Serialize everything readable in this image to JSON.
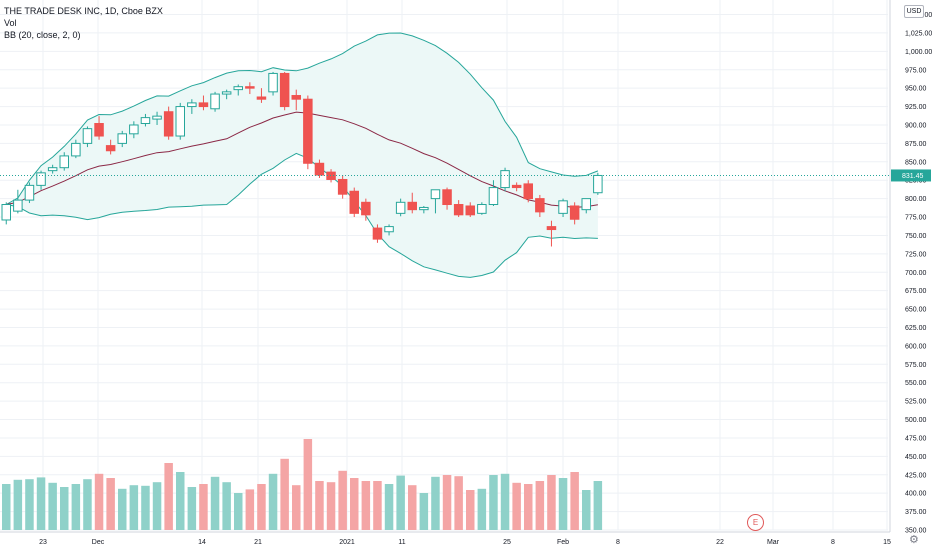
{
  "header": {
    "title": "THE TRADE DESK INC, 1D, Cboe BZX",
    "volume_label": "Vol",
    "bb_label": "BB (20, close, 2, 0)"
  },
  "currency_badge": "USD",
  "settings_icon": "gear-icon",
  "earnings_marker": "E",
  "colors": {
    "up": "#26a69a",
    "down": "#ef5350",
    "up_volume": "#8fd1c9",
    "down_volume": "#f4a5a5",
    "band": "#26a69a",
    "band_fill": "#ecf8f7",
    "basis": "#8b2846",
    "grid": "#eef1f5",
    "last_price_bg": "#26a69a"
  },
  "chart_data": {
    "type": "candlestick",
    "symbol": "THE TRADE DESK INC",
    "interval": "1D",
    "exchange": "Cboe BZX",
    "price_axis": {
      "ticks": [
        "1,050.00",
        "1,025.00",
        "1,000.00",
        "975.00",
        "950.00",
        "925.00",
        "900.00",
        "875.00",
        "850.00",
        "825.00",
        "800.00",
        "775.00",
        "750.00",
        "725.00",
        "700.00",
        "675.00",
        "650.00",
        "625.00",
        "600.00",
        "575.00",
        "550.00",
        "525.00",
        "500.00",
        "475.00",
        "450.00",
        "425.00",
        "400.00",
        "375.00",
        "350.00"
      ],
      "range": [
        350,
        1062
      ]
    },
    "x_ticks": [
      "23",
      "Dec",
      "14",
      "21",
      "2021",
      "11",
      "25",
      "Feb",
      "8",
      "22",
      "Mar",
      "8",
      "15"
    ],
    "last_price": 831.45,
    "last_price_label": "831.45",
    "candles": [
      {
        "o": 771,
        "h": 795,
        "l": 765,
        "c": 792
      },
      {
        "o": 783,
        "h": 812,
        "l": 780,
        "c": 798
      },
      {
        "o": 798,
        "h": 822,
        "l": 794,
        "c": 818
      },
      {
        "o": 818,
        "h": 838,
        "l": 812,
        "c": 835
      },
      {
        "o": 838,
        "h": 846,
        "l": 834,
        "c": 842
      },
      {
        "o": 842,
        "h": 863,
        "l": 838,
        "c": 858
      },
      {
        "o": 858,
        "h": 880,
        "l": 855,
        "c": 875
      },
      {
        "o": 875,
        "h": 898,
        "l": 870,
        "c": 895
      },
      {
        "o": 902,
        "h": 912,
        "l": 880,
        "c": 885
      },
      {
        "o": 872,
        "h": 880,
        "l": 860,
        "c": 865
      },
      {
        "o": 875,
        "h": 892,
        "l": 870,
        "c": 888
      },
      {
        "o": 888,
        "h": 905,
        "l": 882,
        "c": 900
      },
      {
        "o": 902,
        "h": 915,
        "l": 898,
        "c": 910
      },
      {
        "o": 908,
        "h": 918,
        "l": 900,
        "c": 912
      },
      {
        "o": 918,
        "h": 925,
        "l": 880,
        "c": 885
      },
      {
        "o": 885,
        "h": 930,
        "l": 880,
        "c": 925
      },
      {
        "o": 925,
        "h": 935,
        "l": 915,
        "c": 930
      },
      {
        "o": 930,
        "h": 940,
        "l": 920,
        "c": 925
      },
      {
        "o": 922,
        "h": 945,
        "l": 918,
        "c": 942
      },
      {
        "o": 942,
        "h": 948,
        "l": 935,
        "c": 945
      },
      {
        "o": 948,
        "h": 955,
        "l": 940,
        "c": 952
      },
      {
        "o": 952,
        "h": 958,
        "l": 942,
        "c": 950
      },
      {
        "o": 938,
        "h": 950,
        "l": 930,
        "c": 935
      },
      {
        "o": 945,
        "h": 972,
        "l": 940,
        "c": 970
      },
      {
        "o": 970,
        "h": 972,
        "l": 920,
        "c": 925
      },
      {
        "o": 940,
        "h": 948,
        "l": 920,
        "c": 935
      },
      {
        "o": 935,
        "h": 940,
        "l": 840,
        "c": 848
      },
      {
        "o": 848,
        "h": 853,
        "l": 828,
        "c": 832
      },
      {
        "o": 836,
        "h": 840,
        "l": 822,
        "c": 826
      },
      {
        "o": 826,
        "h": 832,
        "l": 800,
        "c": 806
      },
      {
        "o": 810,
        "h": 815,
        "l": 775,
        "c": 780
      },
      {
        "o": 795,
        "h": 800,
        "l": 770,
        "c": 778
      },
      {
        "o": 760,
        "h": 765,
        "l": 740,
        "c": 745
      },
      {
        "o": 755,
        "h": 765,
        "l": 750,
        "c": 762
      },
      {
        "o": 780,
        "h": 800,
        "l": 776,
        "c": 795
      },
      {
        "o": 795,
        "h": 808,
        "l": 780,
        "c": 785
      },
      {
        "o": 785,
        "h": 790,
        "l": 780,
        "c": 788
      },
      {
        "o": 800,
        "h": 812,
        "l": 780,
        "c": 812
      },
      {
        "o": 812,
        "h": 815,
        "l": 785,
        "c": 792
      },
      {
        "o": 792,
        "h": 798,
        "l": 775,
        "c": 778
      },
      {
        "o": 790,
        "h": 795,
        "l": 775,
        "c": 778
      },
      {
        "o": 780,
        "h": 795,
        "l": 778,
        "c": 792
      },
      {
        "o": 792,
        "h": 825,
        "l": 790,
        "c": 815
      },
      {
        "o": 815,
        "h": 842,
        "l": 810,
        "c": 838
      },
      {
        "o": 818,
        "h": 822,
        "l": 810,
        "c": 815
      },
      {
        "o": 820,
        "h": 825,
        "l": 795,
        "c": 800
      },
      {
        "o": 800,
        "h": 805,
        "l": 775,
        "c": 782
      },
      {
        "o": 762,
        "h": 770,
        "l": 735,
        "c": 758
      },
      {
        "o": 780,
        "h": 800,
        "l": 775,
        "c": 797
      },
      {
        "o": 790,
        "h": 795,
        "l": 765,
        "c": 772
      },
      {
        "o": 785,
        "h": 800,
        "l": 780,
        "c": 800
      },
      {
        "o": 808,
        "h": 835,
        "l": 805,
        "c": 831.45
      }
    ],
    "volume_shown": true,
    "bollinger": {
      "length": 20,
      "source": "close",
      "mult": 2,
      "offset": 0
    },
    "grid": true
  }
}
